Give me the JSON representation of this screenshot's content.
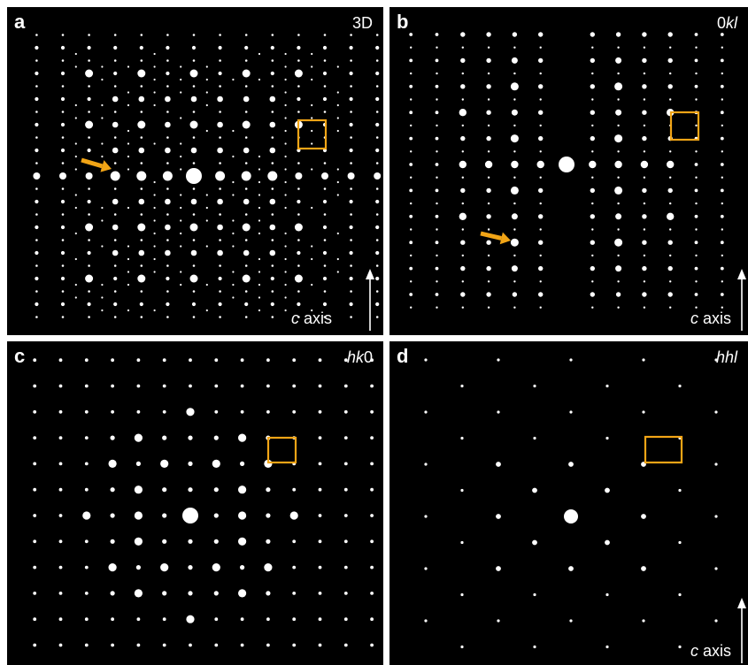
{
  "panels": [
    {
      "id": "a",
      "label": "a",
      "tag": "3D",
      "tag_italic": false,
      "has_axis": true
    },
    {
      "id": "b",
      "label": "b",
      "tag_prefix": "0",
      "tag_italic_part": "kl",
      "has_axis": true
    },
    {
      "id": "c",
      "label": "c",
      "tag_italic_part": "hk",
      "tag_suffix": "0",
      "has_axis": false
    },
    {
      "id": "d",
      "label": "d",
      "tag_italic_part": "hhl",
      "has_axis": true
    }
  ],
  "axis": {
    "italic": "c",
    "rest": " axis"
  },
  "colors": {
    "background": "#000000",
    "spot": "#ffffff",
    "highlight": "#f2a516",
    "border": "#ffffff"
  }
}
